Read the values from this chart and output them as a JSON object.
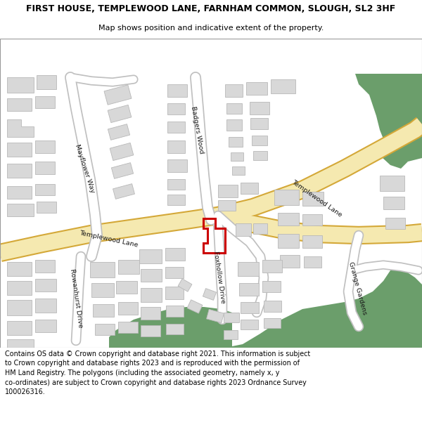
{
  "title_line1": "FIRST HOUSE, TEMPLEWOOD LANE, FARNHAM COMMON, SLOUGH, SL2 3HF",
  "title_line2": "Map shows position and indicative extent of the property.",
  "footer_text": "Contains OS data © Crown copyright and database right 2021. This information is subject\nto Crown copyright and database rights 2023 and is reproduced with the permission of\nHM Land Registry. The polygons (including the associated geometry, namely x, y\nco-ordinates) are subject to Crown copyright and database rights 2023 Ordnance Survey\n100026316.",
  "bg_color": "#ffffff",
  "map_bg": "#ffffff",
  "road_yellow_fill": "#f5e9b0",
  "road_yellow_border": "#d4a838",
  "road_white_fill": "#ffffff",
  "road_gray_border": "#c0c0c0",
  "building_fill": "#d8d8d8",
  "building_outline": "#b8b8b8",
  "green_fill": "#6b9e6b",
  "property_outline": "#cc0000",
  "property_lw": 2.0
}
